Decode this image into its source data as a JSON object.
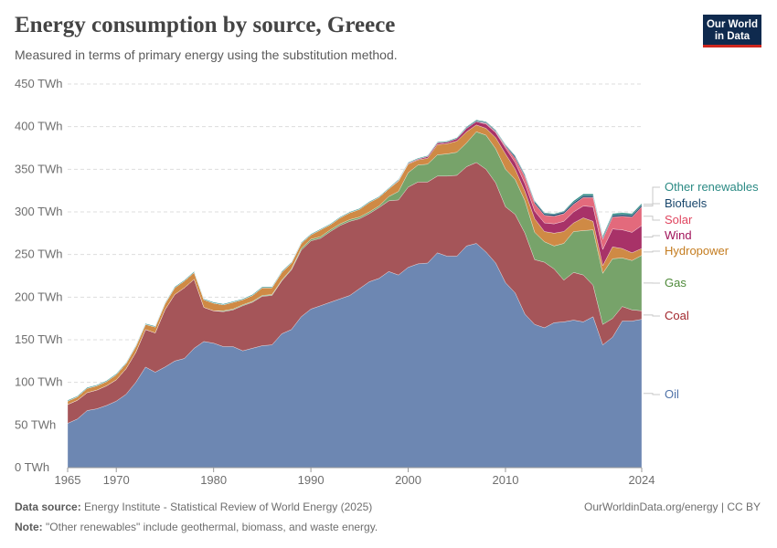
{
  "header": {
    "title": "Energy consumption by source, Greece",
    "subtitle": "Measured in terms of primary energy using the substitution method."
  },
  "logo": {
    "line1": "Our World",
    "line2": "in Data"
  },
  "footer": {
    "source_label": "Data source:",
    "source_text": "Energy Institute - Statistical Review of World Energy (2025)",
    "note_label": "Note:",
    "note_text": "\"Other renewables\" include geothermal, biomass, and waste energy.",
    "attribution": "OurWorldinData.org/energy | CC BY"
  },
  "chart_data": {
    "type": "area",
    "stacked": true,
    "title": "Energy consumption by source, Greece",
    "unit": "TWh",
    "ylim": [
      0,
      450
    ],
    "xlim": [
      1965,
      2024
    ],
    "y_ticks": [
      0,
      50,
      100,
      150,
      200,
      250,
      300,
      350,
      400,
      450
    ],
    "y_tick_labels": [
      "0 TWh",
      "50 TWh",
      "100 TWh",
      "150 TWh",
      "200 TWh",
      "250 TWh",
      "300 TWh",
      "350 TWh",
      "400 TWh",
      "450 TWh"
    ],
    "x_ticks": [
      1965,
      1970,
      1980,
      1990,
      2000,
      2010,
      2024
    ],
    "x_tick_labels": [
      "1965",
      "1970",
      "1980",
      "1990",
      "2000",
      "2010",
      "2024"
    ],
    "x": [
      1965,
      1966,
      1967,
      1968,
      1969,
      1970,
      1971,
      1972,
      1973,
      1974,
      1975,
      1976,
      1977,
      1978,
      1979,
      1980,
      1981,
      1982,
      1983,
      1984,
      1985,
      1986,
      1987,
      1988,
      1989,
      1990,
      1991,
      1992,
      1993,
      1994,
      1995,
      1996,
      1997,
      1998,
      1999,
      2000,
      2001,
      2002,
      2003,
      2004,
      2005,
      2006,
      2007,
      2008,
      2009,
      2010,
      2011,
      2012,
      2013,
      2014,
      2015,
      2016,
      2017,
      2018,
      2019,
      2020,
      2021,
      2022,
      2023,
      2024
    ],
    "series": [
      {
        "name": "Oil",
        "color": "#6d87b2",
        "values": [
          52,
          57,
          67,
          69,
          73,
          78,
          86,
          100,
          118,
          112,
          118,
          125,
          128,
          140,
          148,
          146,
          142,
          142,
          137,
          140,
          143,
          144,
          157,
          162,
          177,
          186,
          190,
          194,
          198,
          202,
          210,
          218,
          222,
          230,
          226,
          235,
          239,
          240,
          252,
          248,
          248,
          260,
          263,
          253,
          240,
          217,
          205,
          180,
          168,
          164,
          170,
          171,
          173,
          171,
          177,
          144,
          153,
          172,
          172,
          174
        ]
      },
      {
        "name": "Coal",
        "color": "#a55559",
        "values": [
          22,
          22,
          21,
          22,
          23,
          25,
          30,
          35,
          44,
          46,
          67,
          78,
          83,
          81,
          40,
          38,
          41,
          43,
          53,
          54,
          58,
          58,
          62,
          70,
          78,
          80,
          79,
          83,
          86,
          87,
          82,
          80,
          83,
          83,
          88,
          94,
          96,
          95,
          90,
          94,
          95,
          93,
          95,
          97,
          94,
          89,
          92,
          95,
          76,
          77,
          63,
          49,
          56,
          55,
          37,
          24,
          22,
          17,
          13,
          10
        ]
      },
      {
        "name": "Gas",
        "color": "#77a36a",
        "values": [
          0,
          0,
          0,
          0,
          0,
          0,
          0,
          0,
          0,
          0,
          0,
          0,
          0,
          0,
          0,
          0,
          1,
          1,
          1,
          1,
          1,
          1,
          1,
          1,
          2,
          2,
          2,
          2,
          2,
          2,
          2,
          2,
          2,
          5,
          10,
          17,
          20,
          21,
          25,
          26,
          27,
          28,
          36,
          40,
          40,
          44,
          41,
          38,
          32,
          24,
          27,
          43,
          48,
          52,
          65,
          60,
          70,
          57,
          58,
          65
        ]
      },
      {
        "name": "Hydropower",
        "color": "#cf8a45",
        "values": [
          4,
          4,
          5,
          5,
          5,
          6,
          6,
          7,
          6,
          7,
          7,
          8,
          8,
          8,
          9,
          9,
          7,
          8,
          6,
          7,
          9,
          8,
          9,
          7,
          6,
          5,
          8,
          6,
          7,
          8,
          9,
          11,
          10,
          9,
          12,
          10,
          6,
          7,
          12,
          12,
          13,
          13,
          8,
          8,
          13,
          18,
          12,
          11,
          16,
          12,
          15,
          14,
          10,
          15,
          10,
          9,
          14,
          11,
          9,
          8
        ]
      },
      {
        "name": "Wind",
        "color": "#a83268",
        "values": [
          0,
          0,
          0,
          0,
          0,
          0,
          0,
          0,
          0,
          0,
          0,
          0,
          0,
          0,
          0,
          0,
          0,
          0,
          0,
          0,
          0,
          0,
          0,
          0,
          0,
          0,
          0,
          0,
          0,
          0,
          0,
          0,
          0,
          0,
          1,
          1,
          1,
          2,
          2,
          2,
          3,
          4,
          4,
          5,
          6,
          7,
          8,
          9,
          9,
          10,
          11,
          12,
          13,
          14,
          17,
          19,
          21,
          22,
          24,
          27
        ]
      },
      {
        "name": "Solar",
        "color": "#e36a7c",
        "values": [
          0,
          0,
          0,
          0,
          0,
          0,
          0,
          0,
          0,
          0,
          0,
          0,
          0,
          0,
          0,
          0,
          0,
          0,
          0,
          0,
          0,
          0,
          0,
          0,
          0,
          0,
          0,
          0,
          0,
          0,
          0,
          0,
          0,
          0,
          0,
          0,
          0,
          0,
          0,
          0,
          0,
          0,
          0,
          1,
          1,
          2,
          5,
          8,
          9,
          9,
          9,
          9,
          9,
          10,
          11,
          12,
          14,
          16,
          18,
          22
        ]
      },
      {
        "name": "Biofuels",
        "color": "#17456b",
        "values": [
          0,
          0,
          0,
          0,
          0,
          0,
          0,
          0,
          0,
          0,
          0,
          0,
          0,
          0,
          0,
          0,
          0,
          0,
          0,
          0,
          0,
          0,
          0,
          0,
          0,
          0,
          0,
          0,
          0,
          0,
          0,
          0,
          0,
          0,
          0,
          0,
          0,
          0,
          0,
          0,
          0,
          1,
          1,
          1,
          1,
          1,
          2,
          2,
          2,
          2,
          2,
          2,
          2,
          2,
          2,
          2,
          2,
          2,
          2,
          2
        ]
      },
      {
        "name": "Other renewables",
        "color": "#2b8a84",
        "values": [
          1,
          1,
          1,
          1,
          1,
          1,
          1,
          1,
          1,
          1,
          1,
          1,
          1,
          1,
          1,
          1,
          1,
          1,
          1,
          1,
          1,
          1,
          1,
          1,
          1,
          1,
          1,
          1,
          1,
          1,
          1,
          1,
          1,
          1,
          1,
          1,
          1,
          1,
          1,
          1,
          1,
          1,
          1,
          1,
          1,
          1,
          1,
          1,
          1,
          1,
          1,
          1,
          2,
          2,
          2,
          2,
          2,
          2,
          2,
          2
        ]
      }
    ],
    "legend": [
      {
        "name": "Other renewables",
        "color": "#2b8a84"
      },
      {
        "name": "Biofuels",
        "color": "#17456b"
      },
      {
        "name": "Solar",
        "color": "#e0455f"
      },
      {
        "name": "Wind",
        "color": "#a1135a"
      },
      {
        "name": "Hydropower",
        "color": "#c47c1f"
      },
      {
        "name": "Gas",
        "color": "#4f8a3a"
      },
      {
        "name": "Coal",
        "color": "#a2262c"
      },
      {
        "name": "Oil",
        "color": "#4f72a8"
      }
    ],
    "legend_placement": "right"
  }
}
